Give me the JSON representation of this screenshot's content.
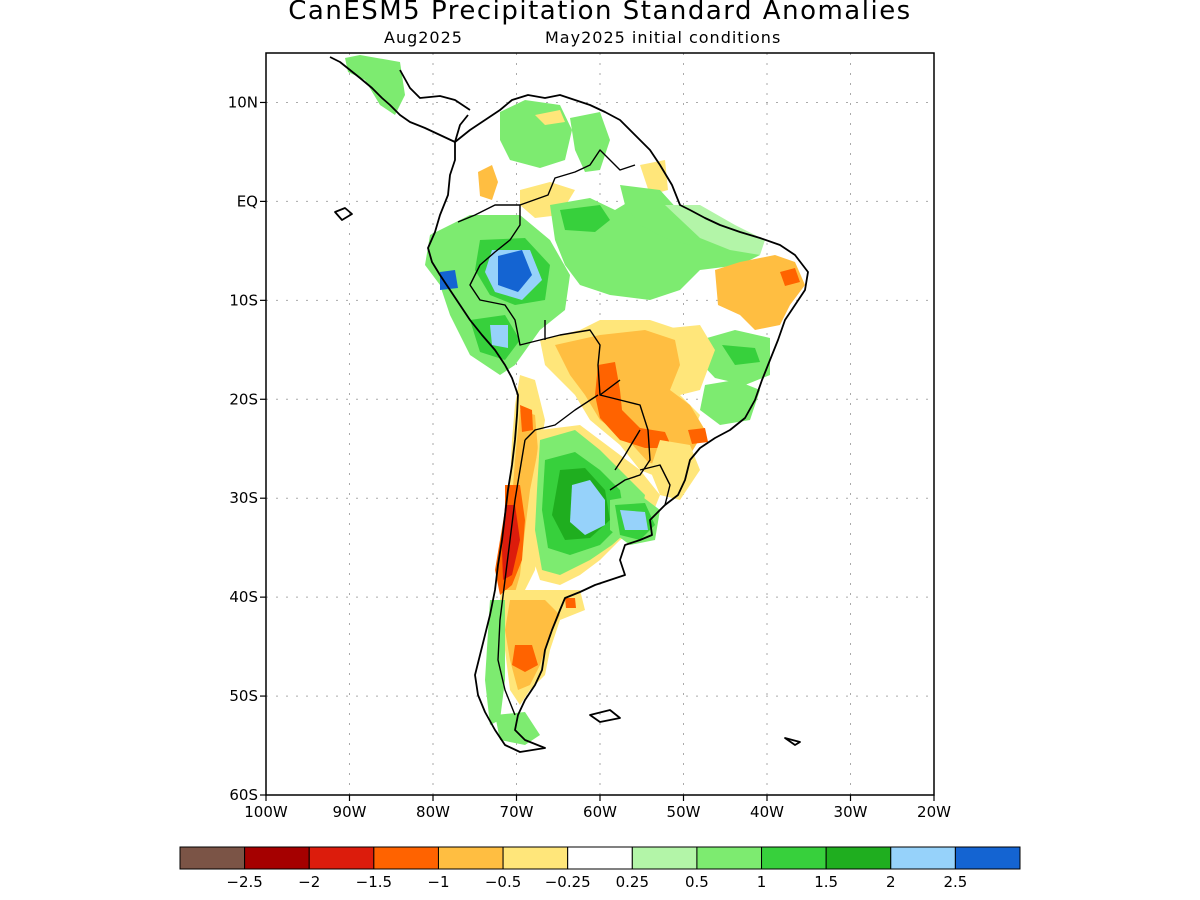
{
  "title": "CanESM5 Precipitation Standard Anomalies",
  "subtitle_left": "Aug2025",
  "subtitle_right": "May2025 initial conditions",
  "map": {
    "lon_range": [
      -100,
      -20
    ],
    "lat_range": [
      -60,
      15
    ],
    "grid": true,
    "lat_ticks": [
      {
        "value": 10,
        "label": "10N"
      },
      {
        "value": 0,
        "label": "EQ"
      },
      {
        "value": -10,
        "label": "10S"
      },
      {
        "value": -20,
        "label": "20S"
      },
      {
        "value": -30,
        "label": "30S"
      },
      {
        "value": -40,
        "label": "40S"
      },
      {
        "value": -50,
        "label": "50S"
      },
      {
        "value": -60,
        "label": "60S"
      }
    ],
    "lon_ticks": [
      {
        "value": -100,
        "label": "100W"
      },
      {
        "value": -90,
        "label": "90W"
      },
      {
        "value": -80,
        "label": "80W"
      },
      {
        "value": -70,
        "label": "70W"
      },
      {
        "value": -60,
        "label": "60W"
      },
      {
        "value": -50,
        "label": "50W"
      },
      {
        "value": -40,
        "label": "40W"
      },
      {
        "value": -30,
        "label": "30W"
      },
      {
        "value": -20,
        "label": "20W"
      }
    ]
  },
  "colorbar": {
    "colors": [
      "#7b5446",
      "#a50000",
      "#dc1c0c",
      "#ff6300",
      "#ffbe41",
      "#ffe67a",
      "#ffffff",
      "#b3f5a8",
      "#7deb70",
      "#37d03c",
      "#1fae1f",
      "#96d2fa",
      "#1464d2"
    ],
    "labels": [
      "−2.5",
      "−2",
      "−1.5",
      "−1",
      "−0.5",
      "−0.25",
      "0.25",
      "0.5",
      "1",
      "1.5",
      "2",
      "2.5"
    ]
  }
}
